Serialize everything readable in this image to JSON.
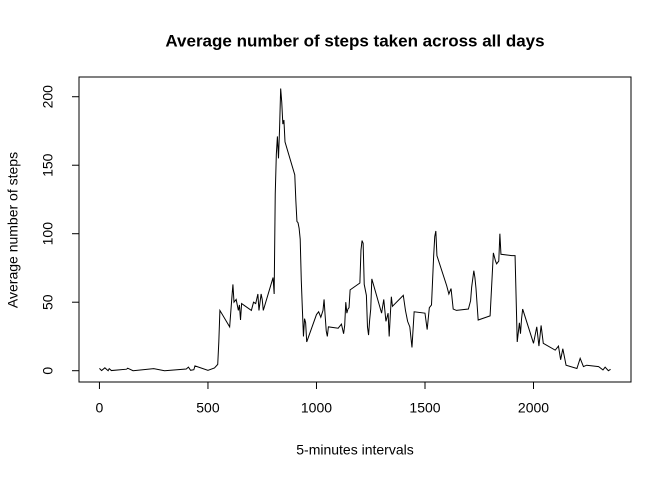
{
  "chart_data": {
    "type": "line",
    "title": "Average number of steps taken across all days",
    "xlabel": "5-minutes intervals",
    "ylabel": "Average number of steps",
    "color": "#000000",
    "xlim": [
      -94.2,
      2449.2
    ],
    "ylim": [
      -8.25,
      214.4
    ],
    "xticks": [
      0,
      500,
      1000,
      1500,
      2000
    ],
    "yticks": [
      0,
      50,
      100,
      150,
      200
    ],
    "x": [
      0,
      10,
      25,
      40,
      45,
      55,
      125,
      130,
      155,
      250,
      300,
      400,
      410,
      420,
      435,
      440,
      450,
      500,
      530,
      545,
      550,
      555,
      600,
      610,
      615,
      620,
      630,
      640,
      645,
      650,
      655,
      700,
      710,
      720,
      730,
      735,
      745,
      750,
      755,
      800,
      805,
      810,
      815,
      820,
      825,
      830,
      835,
      840,
      845,
      850,
      855,
      900,
      905,
      910,
      915,
      920,
      925,
      930,
      935,
      940,
      945,
      950,
      955,
      1000,
      1010,
      1020,
      1030,
      1035,
      1040,
      1045,
      1050,
      1055,
      1100,
      1115,
      1125,
      1130,
      1135,
      1140,
      1145,
      1150,
      1155,
      1200,
      1205,
      1210,
      1215,
      1220,
      1230,
      1235,
      1240,
      1245,
      1250,
      1255,
      1300,
      1310,
      1320,
      1330,
      1335,
      1340,
      1345,
      1350,
      1400,
      1410,
      1420,
      1430,
      1440,
      1450,
      1500,
      1510,
      1520,
      1530,
      1540,
      1545,
      1550,
      1555,
      1600,
      1610,
      1620,
      1630,
      1645,
      1700,
      1710,
      1715,
      1725,
      1730,
      1735,
      1745,
      1800,
      1815,
      1825,
      1830,
      1840,
      1845,
      1850,
      1900,
      1915,
      1925,
      1930,
      1935,
      1940,
      1945,
      1950,
      2000,
      2015,
      2025,
      2035,
      2045,
      2100,
      2115,
      2125,
      2135,
      2150,
      2200,
      2215,
      2230,
      2245,
      2300,
      2320,
      2330,
      2345,
      2355
    ],
    "values": [
      1.7,
      0.1,
      2.1,
      0,
      1.5,
      0.1,
      1.1,
      1.8,
      0,
      1.5,
      0,
      1.2,
      2.6,
      0.3,
      0.7,
      3.5,
      3,
      0.3,
      2,
      4.6,
      21,
      44,
      32,
      53,
      63,
      50,
      52,
      44,
      48,
      37,
      49,
      44,
      50,
      49,
      56,
      44,
      56,
      52,
      44,
      68,
      56,
      129,
      158,
      171,
      155,
      177,
      206,
      196,
      180,
      183,
      167,
      143,
      124,
      109,
      108,
      104,
      96,
      66,
      45,
      25,
      38,
      35,
      21,
      41,
      43,
      39,
      44,
      52,
      40,
      29,
      25,
      32,
      31,
      34,
      27,
      33,
      50,
      42,
      45,
      46,
      59,
      64,
      88,
      95,
      93,
      63,
      55,
      32,
      26,
      37,
      45,
      67,
      42,
      52,
      36,
      42,
      25,
      40,
      54,
      47,
      55,
      44,
      36,
      32,
      17,
      43,
      42,
      30,
      46,
      48,
      84,
      98,
      102,
      84,
      62,
      56,
      60,
      45,
      44,
      45,
      51,
      61,
      73,
      68,
      60,
      37,
      40,
      86,
      80,
      78,
      80,
      100,
      85,
      84,
      84,
      21,
      28,
      35,
      27,
      38,
      45,
      20,
      32,
      18,
      33,
      20,
      15,
      18,
      8,
      16,
      4,
      1.6,
      9,
      3,
      4,
      3,
      0.6,
      2.6,
      0,
      1
    ]
  }
}
